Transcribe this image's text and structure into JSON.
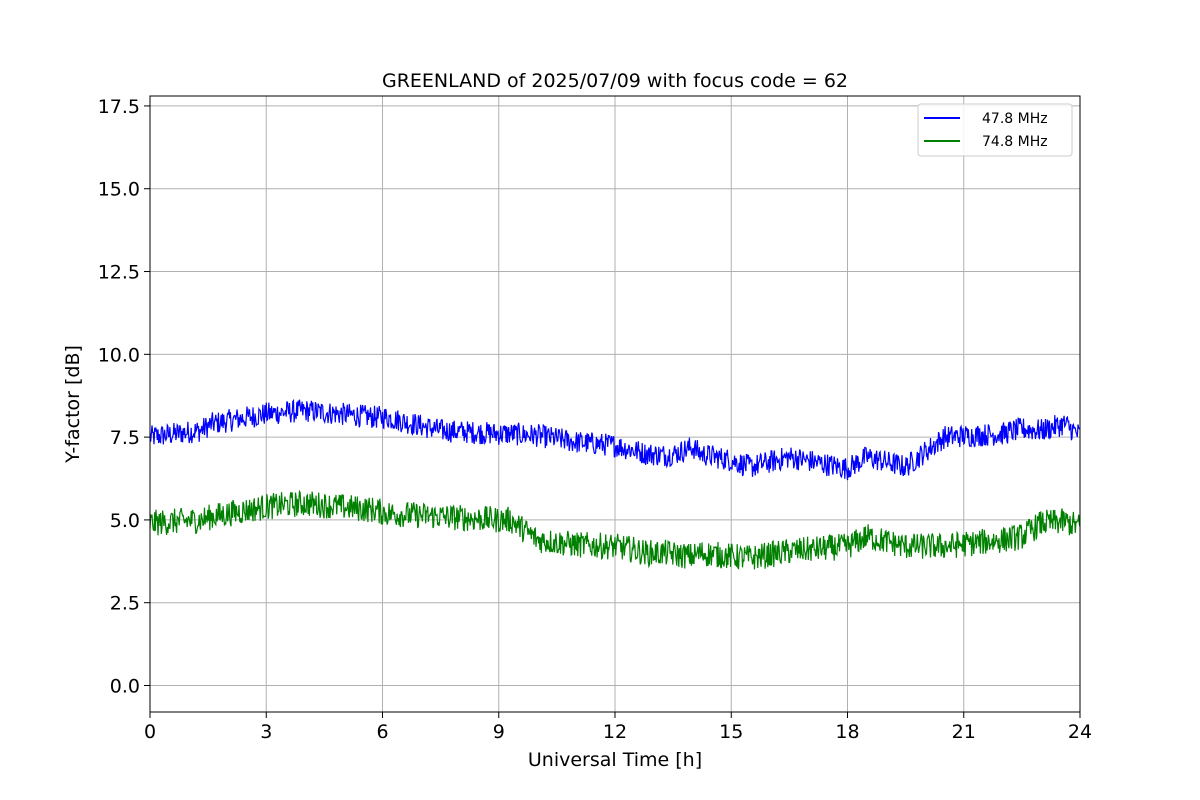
{
  "chart_data": {
    "type": "line",
    "title": "GREENLAND of 2025/07/09 with focus code = 62",
    "xlabel": "Universal Time [h]",
    "ylabel": "Y-factor [dB]",
    "xlim": [
      0,
      24
    ],
    "ylim": [
      -0.8,
      17.8
    ],
    "xticks": [
      0,
      3,
      6,
      9,
      12,
      15,
      18,
      21,
      24
    ],
    "xtick_labels": [
      "0",
      "3",
      "6",
      "9",
      "12",
      "15",
      "18",
      "21",
      "24"
    ],
    "yticks": [
      0,
      2.5,
      5,
      7.5,
      10,
      12.5,
      15,
      17.5
    ],
    "ytick_labels": [
      "0.0",
      "2.5",
      "5.0",
      "7.5",
      "10.0",
      "12.5",
      "15.0",
      "17.5"
    ],
    "grid": true,
    "legend_position": "top-right",
    "series": [
      {
        "name": "47.8 MHz",
        "color": "#0000ff",
        "noise": 0.35,
        "x": [
          0,
          1.3,
          1.6,
          3,
          4,
          5.8,
          6.1,
          7.5,
          9,
          9.3,
          10,
          11,
          12,
          12.5,
          12.8,
          13.3,
          13.55,
          14.0,
          14.2,
          15.0,
          15.5,
          16.5,
          18,
          18.5,
          19.5,
          20.5,
          22,
          22.5,
          23,
          23.6,
          24
        ],
        "y": [
          7.5,
          7.7,
          7.9,
          8.2,
          8.3,
          8.1,
          8.1,
          7.7,
          7.6,
          7.6,
          7.55,
          7.35,
          7.25,
          7.1,
          7.0,
          6.95,
          7.0,
          7.2,
          7.0,
          6.8,
          6.6,
          6.9,
          6.55,
          6.9,
          6.6,
          7.5,
          7.6,
          7.75,
          7.7,
          7.9,
          7.55
        ]
      },
      {
        "name": "74.8 MHz",
        "color": "#008000",
        "noise": 0.4,
        "x": [
          0,
          1.3,
          1.6,
          3,
          4,
          5.8,
          6.1,
          7.5,
          9,
          9.3,
          10,
          11,
          12,
          12.5,
          12.8,
          13.3,
          13.55,
          14.0,
          14.2,
          15.0,
          15.5,
          16.5,
          18,
          18.5,
          19.5,
          20.5,
          22,
          22.5,
          23,
          23.6,
          24
        ],
        "y": [
          4.9,
          5.0,
          5.1,
          5.4,
          5.5,
          5.3,
          5.2,
          5.1,
          5.0,
          5.0,
          4.4,
          4.25,
          4.2,
          4.1,
          4.0,
          4.0,
          3.95,
          3.9,
          4.0,
          3.9,
          3.85,
          4.05,
          4.2,
          4.5,
          4.2,
          4.2,
          4.4,
          4.5,
          4.9,
          4.95,
          4.8
        ]
      }
    ]
  }
}
